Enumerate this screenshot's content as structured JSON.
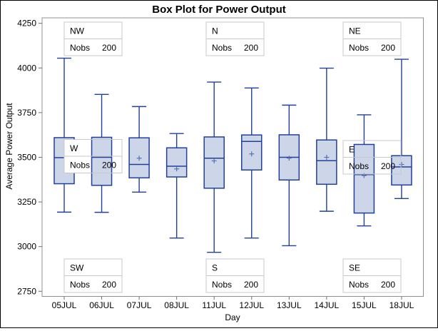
{
  "chart_data": {
    "type": "box",
    "title": "Box Plot for Power Output",
    "xlabel": "Day",
    "ylabel": "Average Power Output",
    "ylim": [
      2750,
      4250
    ],
    "yticks": [
      "2750",
      "3000",
      "3250",
      "3500",
      "3750",
      "4000",
      "4250"
    ],
    "categories": [
      "05JUL",
      "06JUL",
      "07JUL",
      "08JUL",
      "11JUL",
      "12JUL",
      "13JUL",
      "14JUL",
      "15JUL",
      "18JUL"
    ],
    "grid": false,
    "legend": "none",
    "boxes": [
      {
        "day": "05JUL",
        "whisker_low": 3193,
        "q1": 3352,
        "median": 3498,
        "q3": 3610,
        "whisker_high": 4055,
        "mean": null
      },
      {
        "day": "06JUL",
        "whisker_low": 3192,
        "q1": 3343,
        "median": 3500,
        "q3": 3612,
        "whisker_high": 3852,
        "mean": null
      },
      {
        "day": "07JUL",
        "whisker_low": 3305,
        "q1": 3385,
        "median": 3460,
        "q3": 3609,
        "whisker_high": 3784,
        "mean": 3495
      },
      {
        "day": "08JUL",
        "whisker_low": 3048,
        "q1": 3390,
        "median": 3450,
        "q3": 3553,
        "whisker_high": 3633,
        "mean": 3435
      },
      {
        "day": "11JUL",
        "whisker_low": 2968,
        "q1": 3327,
        "median": 3495,
        "q3": 3614,
        "whisker_high": 3921,
        "mean": 3480
      },
      {
        "day": "12JUL",
        "whisker_low": 3048,
        "q1": 3429,
        "median": 3589,
        "q3": 3625,
        "whisker_high": 3888,
        "mean": 3519
      },
      {
        "day": "13JUL",
        "whisker_low": 3005,
        "q1": 3373,
        "median": 3500,
        "q3": 3626,
        "whisker_high": 3792,
        "mean": 3495
      },
      {
        "day": "14JUL",
        "whisker_low": 3198,
        "q1": 3349,
        "median": 3481,
        "q3": 3597,
        "whisker_high": 3999,
        "mean": 3500
      },
      {
        "day": "15JUL",
        "whisker_low": 3116,
        "q1": 3188,
        "median": 3403,
        "q3": 3572,
        "whisker_high": 3738,
        "mean": 3398
      },
      {
        "day": "18JUL",
        "whisker_low": 3269,
        "q1": 3345,
        "median": 3446,
        "q3": 3509,
        "whisker_high": 4049,
        "mean": 3460
      }
    ],
    "insets": [
      {
        "position": "nw",
        "label": "NW",
        "stat_label": "Nobs",
        "stat_value": "200"
      },
      {
        "position": "n",
        "label": "N",
        "stat_label": "Nobs",
        "stat_value": "200"
      },
      {
        "position": "ne",
        "label": "NE",
        "stat_label": "Nobs",
        "stat_value": "200"
      },
      {
        "position": "w",
        "label": "W",
        "stat_label": "Nobs",
        "stat_value": "200"
      },
      {
        "position": "e",
        "label": "E",
        "stat_label": "Nobs",
        "stat_value": "200"
      },
      {
        "position": "sw",
        "label": "SW",
        "stat_label": "Nobs",
        "stat_value": "200"
      },
      {
        "position": "s",
        "label": "S",
        "stat_label": "Nobs",
        "stat_value": "200"
      },
      {
        "position": "se",
        "label": "SE",
        "stat_label": "Nobs",
        "stat_value": "200"
      }
    ]
  },
  "colors": {
    "box_fill": "#cdd6e8",
    "box_stroke": "#20409a",
    "mean_marker": "#5671b5",
    "plot_frame": "#909090",
    "tick": "#707070",
    "inset_border": "#c8c8c8",
    "text": "#000000",
    "figure_border": "#000000",
    "background": "#ffffff"
  }
}
